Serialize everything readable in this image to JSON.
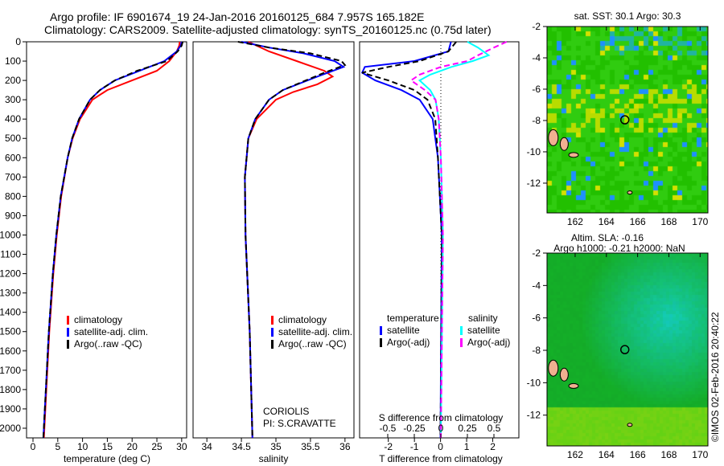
{
  "title": {
    "line1": "Argo profile: IF 6901674_19 24-Jan-2016 20160125_684 7.957S 165.182E",
    "line2": "Climatology: CARS2009. Satellite-adjusted climatology: synTS_20160125.nc (0.75d later)"
  },
  "credit": "©IMOS 02-Feb-2016 20:40:22",
  "colors": {
    "clim": "#ff0000",
    "sat": "#0000ff",
    "argo": "#000000",
    "sal_sat": "#00ffff",
    "sal_argo": "#ff00ff"
  },
  "chart_data": [
    {
      "type": "line",
      "name": "temperature",
      "xlabel": "temperature (deg C)",
      "xlim": [
        -1.3,
        31
      ],
      "ylim": [
        2050,
        0
      ],
      "xticks": [
        0,
        5,
        10,
        15,
        20,
        25,
        30
      ],
      "yticks": [
        0,
        100,
        200,
        300,
        400,
        500,
        600,
        700,
        800,
        900,
        1000,
        1100,
        1200,
        1300,
        1400,
        1500,
        1600,
        1700,
        1800,
        1900,
        2000
      ],
      "legend": [
        "climatology",
        "satellite-adj. clim.",
        "Argo(..raw -QC)"
      ],
      "series": [
        {
          "name": "climatology",
          "color": "clim",
          "depth": [
            0,
            20,
            50,
            100,
            150,
            200,
            250,
            300,
            400,
            500,
            600,
            800,
            1000,
            1200,
            1500,
            1800,
            2050
          ],
          "values": [
            29.6,
            29.5,
            29,
            27.5,
            25,
            20,
            15,
            12,
            9.5,
            8,
            7,
            5.7,
            4.8,
            4.1,
            3.3,
            2.7,
            2.2
          ]
        },
        {
          "name": "satellite-adj. clim.",
          "color": "sat",
          "depth": [
            0,
            20,
            50,
            100,
            150,
            200,
            250,
            300,
            400,
            500,
            600,
            800,
            1000,
            1200,
            1500,
            1800,
            2050
          ],
          "values": [
            30,
            29.8,
            29,
            26.5,
            21.5,
            16.5,
            13.5,
            11.5,
            9.3,
            7.9,
            7,
            5.6,
            4.7,
            4,
            3.2,
            2.6,
            2.1
          ]
        },
        {
          "name": "Argo(..raw -QC)",
          "color": "argo",
          "dashed": true,
          "depth": [
            0,
            20,
            50,
            100,
            150,
            200,
            250,
            300,
            400,
            500,
            600,
            800,
            1000,
            1200,
            1500,
            1800,
            2050
          ],
          "values": [
            30.2,
            30,
            29.2,
            27,
            21,
            16.5,
            13.5,
            11.5,
            9.3,
            7.9,
            7,
            5.6,
            4.7,
            4,
            3.2,
            2.6,
            2.1
          ]
        }
      ]
    },
    {
      "type": "line",
      "name": "salinity",
      "xlabel": "salinity",
      "xlim": [
        33.8,
        36.13
      ],
      "ylim": [
        2050,
        0
      ],
      "xticks": [
        34,
        34.5,
        35,
        35.5,
        36
      ],
      "legend": [
        "climatology",
        "satellite-adj. clim.",
        "Argo(..raw -QC)"
      ],
      "annotation": [
        "CORIOLIS",
        "PI: S.CRAVATTE"
      ],
      "series": [
        {
          "name": "climatology",
          "color": "clim",
          "depth": [
            0,
            50,
            100,
            150,
            180,
            220,
            260,
            300,
            400,
            500,
            700,
            1000,
            1500,
            2050
          ],
          "values": [
            34.6,
            34.9,
            35.3,
            35.7,
            35.82,
            35.6,
            35.25,
            35.0,
            34.72,
            34.6,
            34.55,
            34.56,
            34.62,
            34.66
          ]
        },
        {
          "name": "satellite-adj. clim.",
          "color": "sat",
          "depth": [
            0,
            30,
            60,
            100,
            130,
            180,
            250,
            300,
            400,
            500,
            700,
            1000,
            1500,
            2050
          ],
          "values": [
            34.5,
            34.9,
            35.4,
            35.85,
            35.98,
            35.6,
            35.1,
            34.9,
            34.7,
            34.6,
            34.55,
            34.56,
            34.62,
            34.66
          ]
        },
        {
          "name": "Argo(..raw -QC)",
          "color": "argo",
          "dashed": true,
          "depth": [
            0,
            30,
            60,
            100,
            120,
            160,
            250,
            300,
            400,
            500,
            700,
            1000,
            1500,
            2050
          ],
          "values": [
            34.45,
            34.9,
            35.5,
            35.95,
            36.0,
            35.7,
            35.1,
            34.9,
            34.7,
            34.6,
            34.55,
            34.56,
            34.62,
            34.66
          ]
        }
      ]
    },
    {
      "type": "line",
      "name": "differences",
      "xlabel": "T difference from climatology",
      "x2label": "S difference from climatology",
      "xlim": [
        -3.1,
        3.0
      ],
      "ylim": [
        2050,
        0
      ],
      "xticks": [
        -2,
        -1,
        0,
        1,
        2
      ],
      "x2ticks": [
        "-0.5",
        "-0.25",
        "0",
        "0.25",
        "0.5"
      ],
      "x2values": [
        -0.5,
        -0.25,
        0,
        0.25,
        0.5
      ],
      "legend_titles": [
        "temperature",
        "salinity"
      ],
      "legend": [
        "satellite",
        "Argo(-adj)",
        "satellite",
        "Argo(-adj)"
      ],
      "series": [
        {
          "name": "temperature satellite",
          "color": "sat",
          "unit": "T",
          "depth": [
            0,
            50,
            100,
            130,
            160,
            200,
            250,
            300,
            400,
            600,
            1000,
            1500,
            2050
          ],
          "values": [
            0.4,
            0.3,
            -1,
            -2.9,
            -3.0,
            -2.5,
            -1.5,
            -0.8,
            -0.3,
            -0.1,
            0.05,
            0.02,
            0
          ]
        },
        {
          "name": "temperature Argo(-adj)",
          "color": "argo",
          "dashed": true,
          "unit": "T",
          "depth": [
            0,
            50,
            100,
            130,
            160,
            200,
            250,
            300,
            400,
            600,
            1000,
            1500,
            2050
          ],
          "values": [
            0.6,
            0.3,
            -0.8,
            -2.0,
            -3.0,
            -2.0,
            -1.0,
            -0.5,
            -0.2,
            -0.1,
            0.05,
            0.03,
            0
          ]
        },
        {
          "name": "salinity satellite",
          "color": "sal_sat",
          "unit": "S",
          "depth": [
            0,
            30,
            70,
            100,
            130,
            170,
            200,
            250,
            300,
            400,
            600,
            1000,
            2050
          ],
          "values": [
            0.25,
            0.35,
            0.45,
            0.3,
            0.1,
            -0.1,
            -0.2,
            -0.1,
            -0.05,
            -0.02,
            0,
            0.02,
            0
          ]
        },
        {
          "name": "salinity Argo(-adj)",
          "color": "sal_argo",
          "dashed": true,
          "unit": "S",
          "depth": [
            0,
            30,
            70,
            100,
            130,
            170,
            200,
            250,
            300,
            400,
            600,
            1000,
            2050
          ],
          "values": [
            0.62,
            0.5,
            0.35,
            0.25,
            0.0,
            -0.2,
            -0.28,
            -0.15,
            -0.05,
            -0.02,
            0,
            0.02,
            0
          ]
        }
      ]
    },
    {
      "type": "heatmap",
      "name": "sst-map",
      "title": "sat. SST: 30.1 Argo: 30.3",
      "xticks": [
        162,
        164,
        166,
        168,
        170
      ],
      "yticks": [
        -2,
        -4,
        -6,
        -8,
        -10,
        -12
      ],
      "xlim": [
        160.2,
        170.5
      ],
      "ylim": [
        -13.9,
        -2
      ],
      "marker": [
        165.182,
        -7.957
      ]
    },
    {
      "type": "heatmap",
      "name": "sla-map",
      "title": [
        "Altim. SLA: -0.16",
        "Argo h1000: -0.21 h2000: NaN"
      ],
      "xticks": [
        162,
        164,
        166,
        168,
        170
      ],
      "yticks": [
        -2,
        -4,
        -6,
        -8,
        -10,
        -12
      ],
      "xlim": [
        160.2,
        170.5
      ],
      "ylim": [
        -13.9,
        -2
      ],
      "marker": [
        165.182,
        -7.957
      ]
    }
  ]
}
